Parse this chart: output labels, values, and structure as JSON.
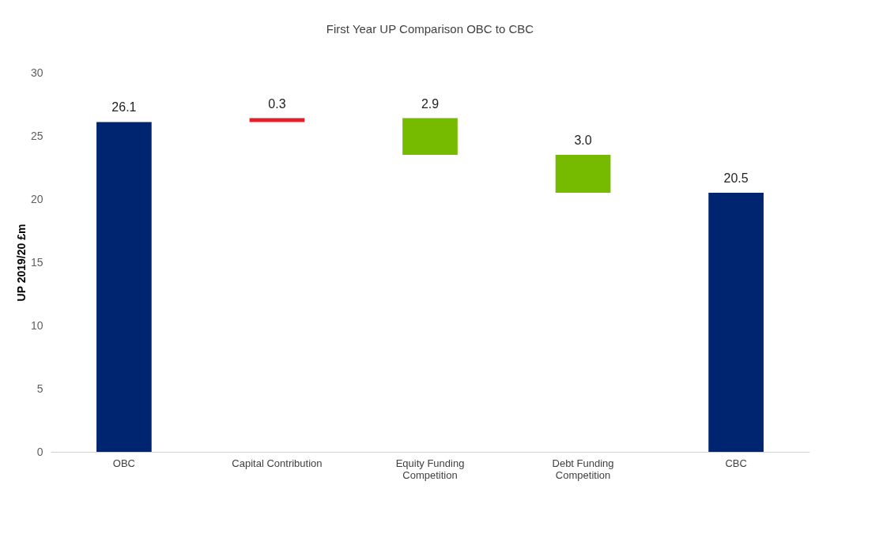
{
  "chart_data": {
    "type": "bar",
    "title": "First Year UP Comparison OBC to CBC",
    "ylabel": "UP 2019/20 £m",
    "categories": [
      "OBC",
      "Capital Contribution",
      "Equity Funding Competition",
      "Debt Funding Competition",
      "CBC"
    ],
    "values": [
      26.1,
      0.3,
      -2.9,
      -3.0,
      20.5
    ],
    "base": [
      0,
      26.1,
      26.4,
      23.5,
      0
    ],
    "colors": [
      "#002570",
      "#e0202a",
      "#77bb00",
      "#77bb00",
      "#002570"
    ],
    "value_labels": [
      "26.1",
      "0.3",
      "2.9",
      "3.0",
      "20.5"
    ],
    "ylim": [
      0,
      30
    ],
    "yticks": [
      0,
      5,
      10,
      15,
      20,
      25,
      30
    ],
    "grid": false
  }
}
